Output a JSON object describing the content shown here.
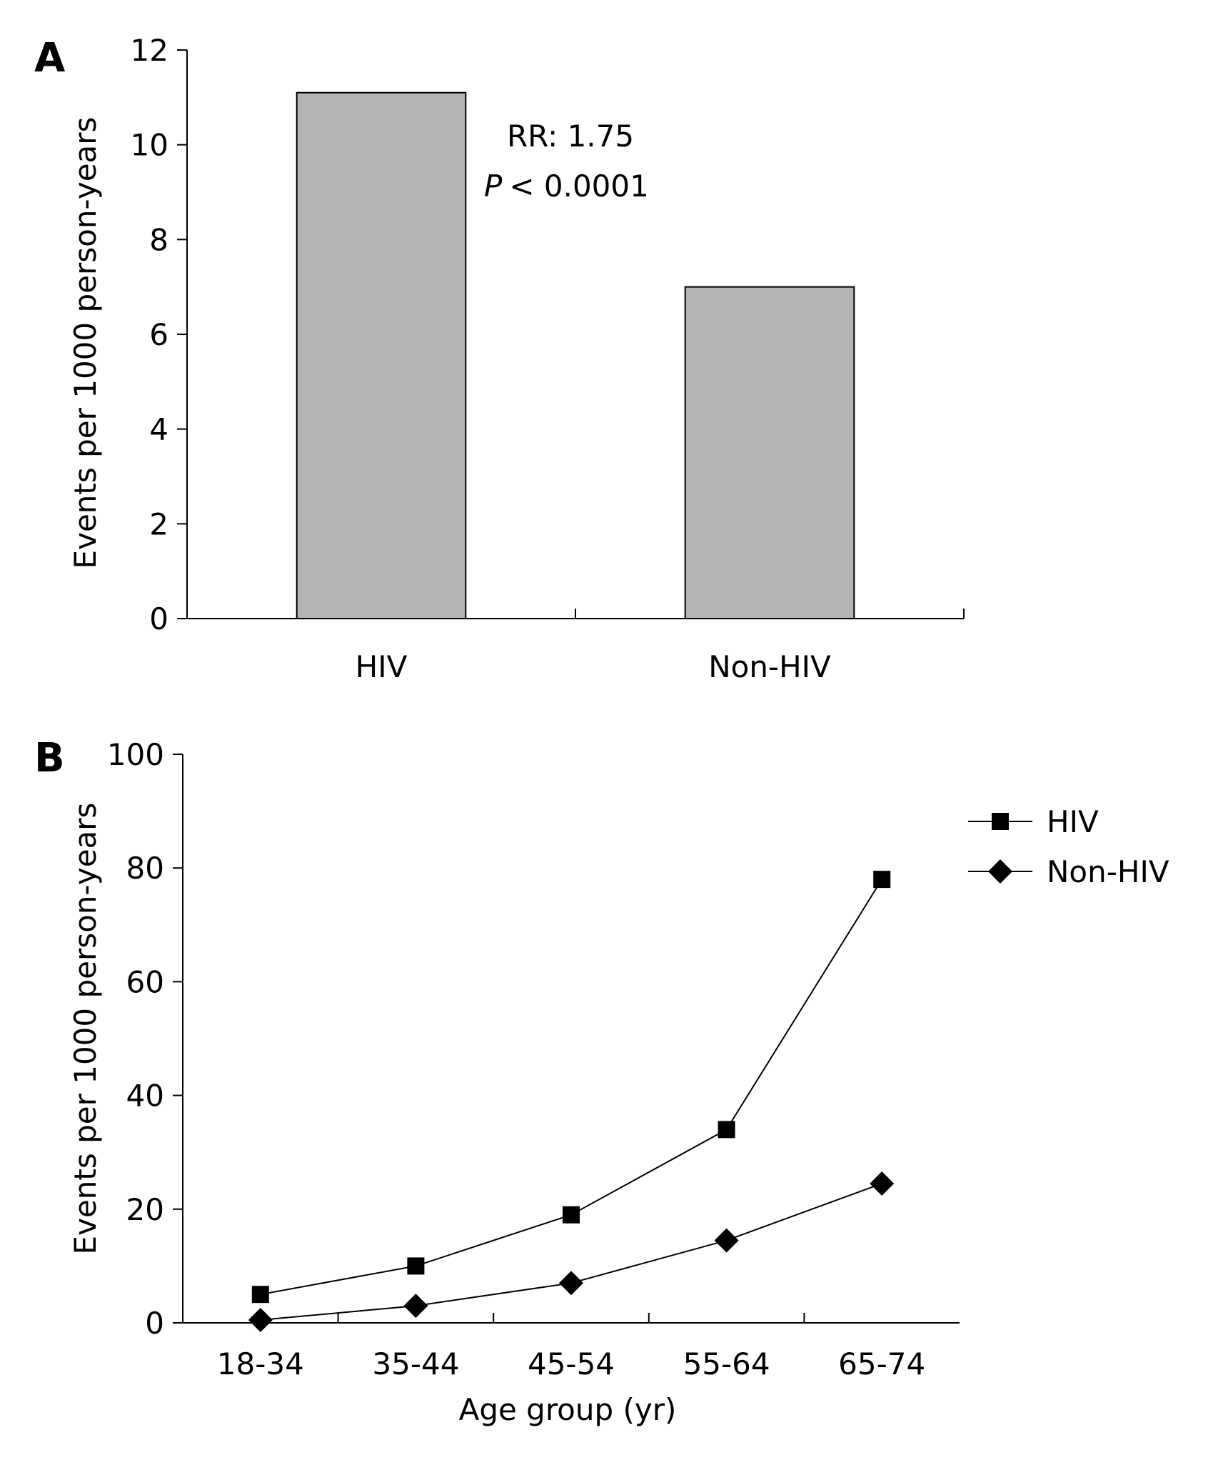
{
  "chart_data": [
    {
      "panel": "A",
      "type": "bar",
      "categories": [
        "HIV",
        "Non-HIV"
      ],
      "values": [
        11.1,
        7.0
      ],
      "ylabel": "Events per 1000 person-years",
      "ylim": [
        0,
        12
      ],
      "yticks": [
        0,
        2,
        4,
        6,
        8,
        10,
        12
      ],
      "bar_color": "#b3b3b3",
      "annotations": {
        "rr": "RR: 1.75",
        "p_symbol": "P",
        "p_value": "< 0.0001"
      }
    },
    {
      "panel": "B",
      "type": "line",
      "categories": [
        "18-34",
        "35-44",
        "45-54",
        "55-64",
        "65-74"
      ],
      "series": [
        {
          "name": "HIV",
          "marker": "square",
          "values": [
            5,
            10,
            19,
            34,
            78
          ]
        },
        {
          "name": "Non-HIV",
          "marker": "diamond",
          "values": [
            0.5,
            3,
            7,
            14.5,
            24.5
          ]
        }
      ],
      "xlabel": "Age group (yr)",
      "ylabel": "Events per 1000 person-years",
      "ylim": [
        0,
        100
      ],
      "yticks": [
        0,
        20,
        40,
        60,
        80,
        100
      ],
      "legend_position": "top-right"
    }
  ]
}
